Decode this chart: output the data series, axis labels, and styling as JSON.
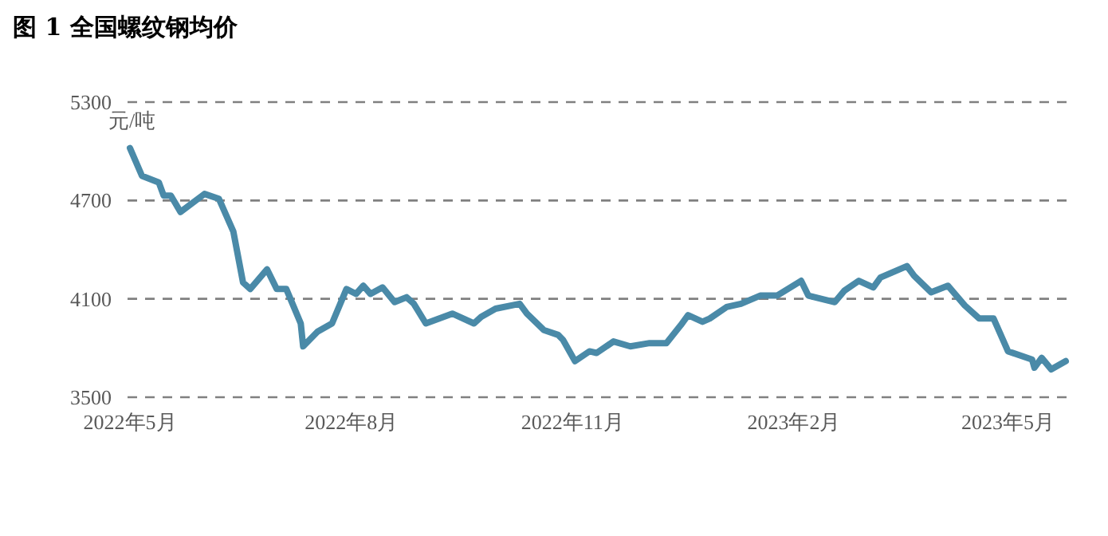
{
  "chart_data": {
    "type": "line",
    "title": "图 1 全国螺纹钢均价",
    "ylabel": "元/吨",
    "x": [
      "2022-05-01",
      "2022-05-06",
      "2022-05-13",
      "2022-05-15",
      "2022-05-18",
      "2022-05-22",
      "2022-06-01",
      "2022-06-07",
      "2022-06-13",
      "2022-06-17",
      "2022-06-20",
      "2022-06-27",
      "2022-07-01",
      "2022-07-05",
      "2022-07-11",
      "2022-07-12",
      "2022-07-18",
      "2022-07-24",
      "2022-07-30",
      "2022-08-03",
      "2022-08-06",
      "2022-08-09",
      "2022-08-14",
      "2022-08-19",
      "2022-08-24",
      "2022-08-27",
      "2022-09-01",
      "2022-09-12",
      "2022-09-21",
      "2022-09-24",
      "2022-09-30",
      "2022-10-10",
      "2022-10-13",
      "2022-10-20",
      "2022-10-26",
      "2022-10-28",
      "2022-11-02",
      "2022-11-08",
      "2022-11-11",
      "2022-11-18",
      "2022-11-25",
      "2022-12-03",
      "2022-12-10",
      "2022-12-16",
      "2022-12-19",
      "2022-12-25",
      "2022-12-28",
      "2023-01-04",
      "2023-01-10",
      "2023-01-18",
      "2023-01-25",
      "2023-02-04",
      "2023-02-07",
      "2023-02-18",
      "2023-02-22",
      "2023-02-28",
      "2023-03-06",
      "2023-03-09",
      "2023-03-20",
      "2023-03-23",
      "2023-03-30",
      "2023-04-06",
      "2023-04-13",
      "2023-04-19",
      "2023-04-25",
      "2023-05-01",
      "2023-05-11",
      "2023-05-12",
      "2023-05-15",
      "2023-05-19",
      "2023-05-25"
    ],
    "series": [
      {
        "color": "#4a8aa8",
        "values": [
          5020,
          4850,
          4810,
          4730,
          4730,
          4630,
          4740,
          4710,
          4510,
          4200,
          4160,
          4280,
          4160,
          4160,
          3950,
          3810,
          3900,
          3950,
          4160,
          4130,
          4180,
          4130,
          4170,
          4080,
          4110,
          4070,
          3950,
          4010,
          3950,
          3990,
          4040,
          4070,
          4010,
          3910,
          3880,
          3850,
          3720,
          3780,
          3770,
          3840,
          3810,
          3830,
          3830,
          3940,
          4000,
          3960,
          3980,
          4050,
          4070,
          4120,
          4120,
          4210,
          4120,
          4080,
          4150,
          4210,
          4170,
          4230,
          4300,
          4240,
          4140,
          4180,
          4060,
          3980,
          3980,
          3780,
          3730,
          3680,
          3740,
          3670,
          3720
        ]
      }
    ],
    "xlim": [
      "2022-04-30",
      "2023-05-26"
    ],
    "xticks": [
      {
        "value": "2022-05-01",
        "label": "2022年5月"
      },
      {
        "value": "2022-08-01",
        "label": "2022年8月"
      },
      {
        "value": "2022-11-01",
        "label": "2022年11月"
      },
      {
        "value": "2023-02-01",
        "label": "2023年2月"
      },
      {
        "value": "2023-05-01",
        "label": "2023年5月"
      }
    ],
    "ylim": [
      3500,
      5300
    ],
    "yticks": [
      3500,
      4100,
      4700,
      5300
    ],
    "grid": "y",
    "line_style": "solid"
  }
}
